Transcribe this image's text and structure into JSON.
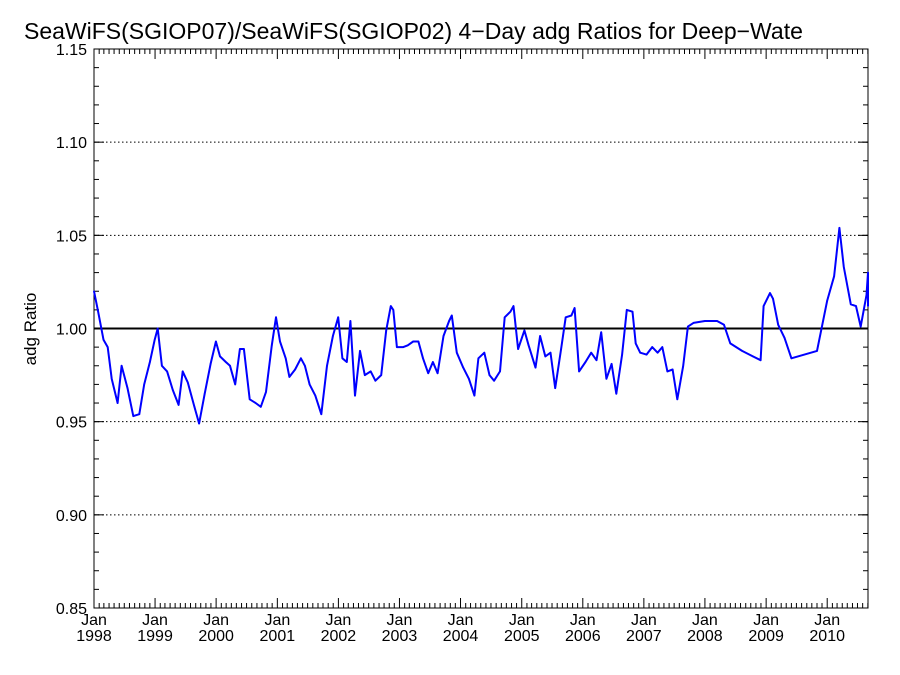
{
  "chart_data": {
    "type": "line",
    "title": "SeaWiFS(SGIOP07)/SeaWiFS(SGIOP02) 4−Day adg Ratios for Deep−Wate",
    "xlabel": "",
    "ylabel": "adg Ratio",
    "ylim": [
      0.85,
      1.15
    ],
    "xlim": [
      "1998-01-01",
      "2010-07-01"
    ],
    "yticks": [
      "0.85",
      "0.90",
      "0.95",
      "1.00",
      "1.05",
      "1.10",
      "1.15"
    ],
    "xticks": [
      {
        "date": "1998-01-01",
        "month": "Jan",
        "year": "1998"
      },
      {
        "date": "1999-01-01",
        "month": "Jan",
        "year": "1999"
      },
      {
        "date": "2000-01-01",
        "month": "Jan",
        "year": "2000"
      },
      {
        "date": "2001-01-01",
        "month": "Jan",
        "year": "2001"
      },
      {
        "date": "2002-01-01",
        "month": "Jan",
        "year": "2002"
      },
      {
        "date": "2003-01-01",
        "month": "Jan",
        "year": "2003"
      },
      {
        "date": "2004-01-01",
        "month": "Jan",
        "year": "2004"
      },
      {
        "date": "2005-01-01",
        "month": "Jan",
        "year": "2005"
      },
      {
        "date": "2006-01-01",
        "month": "Jan",
        "year": "2006"
      },
      {
        "date": "2007-01-01",
        "month": "Jan",
        "year": "2007"
      },
      {
        "date": "2008-01-01",
        "month": "Jan",
        "year": "2008"
      },
      {
        "date": "2009-01-01",
        "month": "Jan",
        "year": "2009"
      },
      {
        "date": "2010-01-01",
        "month": "Jan",
        "year": "2010"
      }
    ],
    "grid": "horizontal dotted",
    "reference_line": 1.0,
    "colors": {
      "series": "#0000ff",
      "reference": "#000000",
      "axes": "#000000"
    },
    "series": [
      {
        "points": [
          [
            "1998-01-01",
            1.02
          ],
          [
            "1998-01-24",
            1.01
          ],
          [
            "1998-02-27",
            0.994
          ],
          [
            "1998-03-24",
            0.99
          ],
          [
            "1998-04-17",
            0.973
          ],
          [
            "1998-05-22",
            0.96
          ],
          [
            "1998-06-15",
            0.98
          ],
          [
            "1998-07-20",
            0.968
          ],
          [
            "1998-08-24",
            0.953
          ],
          [
            "1998-09-29",
            0.954
          ],
          [
            "1998-10-28",
            0.97
          ],
          [
            "1998-12-01",
            0.982
          ],
          [
            "1998-12-30",
            0.994
          ],
          [
            "1999-01-17",
            1.0
          ],
          [
            "1999-02-11",
            0.98
          ],
          [
            "1999-03-14",
            0.977
          ],
          [
            "1999-04-17",
            0.967
          ],
          [
            "1999-05-22",
            0.959
          ],
          [
            "1999-06-15",
            0.977
          ],
          [
            "1999-07-16",
            0.971
          ],
          [
            "1999-08-24",
            0.958
          ],
          [
            "1999-09-21",
            0.949
          ],
          [
            "1999-10-25",
            0.965
          ],
          [
            "1999-11-29",
            0.981
          ],
          [
            "1999-12-31",
            0.993
          ],
          [
            "2000-01-24",
            0.985
          ],
          [
            "2000-02-28",
            0.982
          ],
          [
            "2000-03-24",
            0.98
          ],
          [
            "2000-04-24",
            0.97
          ],
          [
            "2000-05-22",
            0.989
          ],
          [
            "2000-06-15",
            0.989
          ],
          [
            "2000-07-20",
            0.962
          ],
          [
            "2000-08-24",
            0.96
          ],
          [
            "2000-09-24",
            0.958
          ],
          [
            "2000-10-25",
            0.966
          ],
          [
            "2000-11-29",
            0.991
          ],
          [
            "2000-12-24",
            1.006
          ],
          [
            "2001-01-17",
            0.993
          ],
          [
            "2001-02-20",
            0.984
          ],
          [
            "2001-03-14",
            0.974
          ],
          [
            "2001-04-17",
            0.978
          ],
          [
            "2001-05-22",
            0.984
          ],
          [
            "2001-06-15",
            0.98
          ],
          [
            "2001-07-13",
            0.97
          ],
          [
            "2001-08-16",
            0.964
          ],
          [
            "2001-09-21",
            0.954
          ],
          [
            "2001-10-25",
            0.98
          ],
          [
            "2001-11-29",
            0.996
          ],
          [
            "2001-12-31",
            1.006
          ],
          [
            "2002-01-25",
            0.984
          ],
          [
            "2002-02-20",
            0.982
          ],
          [
            "2002-03-14",
            1.004
          ],
          [
            "2002-04-10",
            0.964
          ],
          [
            "2002-05-10",
            0.988
          ],
          [
            "2002-06-08",
            0.975
          ],
          [
            "2002-07-13",
            0.977
          ],
          [
            "2002-08-10",
            0.972
          ],
          [
            "2002-09-14",
            0.975
          ],
          [
            "2002-10-14",
            0.999
          ],
          [
            "2002-11-10",
            1.012
          ],
          [
            "2002-11-25",
            1.01
          ],
          [
            "2002-12-17",
            0.99
          ],
          [
            "2003-01-24",
            0.99
          ],
          [
            "2003-02-20",
            0.991
          ],
          [
            "2003-03-24",
            0.993
          ],
          [
            "2003-04-24",
            0.993
          ],
          [
            "2003-05-22",
            0.984
          ],
          [
            "2003-06-22",
            0.976
          ],
          [
            "2003-07-20",
            0.982
          ],
          [
            "2003-08-17",
            0.976
          ],
          [
            "2003-09-21",
            0.996
          ],
          [
            "2003-10-25",
            1.004
          ],
          [
            "2003-11-10",
            1.007
          ],
          [
            "2003-12-10",
            0.987
          ],
          [
            "2004-01-17",
            0.979
          ],
          [
            "2004-02-20",
            0.973
          ],
          [
            "2004-03-24",
            0.964
          ],
          [
            "2004-04-17",
            0.984
          ],
          [
            "2004-05-22",
            0.987
          ],
          [
            "2004-06-22",
            0.975
          ],
          [
            "2004-07-20",
            0.972
          ],
          [
            "2004-08-24",
            0.977
          ],
          [
            "2004-09-21",
            1.006
          ],
          [
            "2004-10-25",
            1.009
          ],
          [
            "2004-11-13",
            1.012
          ],
          [
            "2004-12-10",
            0.989
          ],
          [
            "2005-01-17",
            0.999
          ],
          [
            "2005-02-11",
            0.991
          ],
          [
            "2005-03-24",
            0.979
          ],
          [
            "2005-04-21",
            0.996
          ],
          [
            "2005-05-22",
            0.985
          ],
          [
            "2005-06-22",
            0.987
          ],
          [
            "2005-07-20",
            0.968
          ],
          [
            "2005-08-24",
            0.989
          ],
          [
            "2005-09-21",
            1.006
          ],
          [
            "2005-10-25",
            1.007
          ],
          [
            "2005-11-13",
            1.011
          ],
          [
            "2005-12-10",
            0.977
          ],
          [
            "2006-01-17",
            0.982
          ],
          [
            "2006-02-20",
            0.987
          ],
          [
            "2006-03-24",
            0.983
          ],
          [
            "2006-04-21",
            0.998
          ],
          [
            "2006-05-22",
            0.973
          ],
          [
            "2006-06-22",
            0.981
          ],
          [
            "2006-07-20",
            0.965
          ],
          [
            "2006-08-24",
            0.986
          ],
          [
            "2006-09-21",
            1.01
          ],
          [
            "2006-10-25",
            1.009
          ],
          [
            "2006-11-13",
            0.992
          ],
          [
            "2006-12-10",
            0.987
          ],
          [
            "2007-01-17",
            0.986
          ],
          [
            "2007-02-20",
            0.99
          ],
          [
            "2007-03-24",
            0.987
          ],
          [
            "2007-04-21",
            0.99
          ],
          [
            "2007-05-22",
            0.977
          ],
          [
            "2007-06-22",
            0.978
          ],
          [
            "2007-07-20",
            0.962
          ],
          [
            "2007-08-24",
            0.98
          ],
          [
            "2007-09-21",
            1.001
          ],
          [
            "2007-10-25",
            1.003
          ],
          [
            "2008-01-01",
            1.004
          ],
          [
            "2008-03-14",
            1.004
          ],
          [
            "2008-04-24",
            1.002
          ],
          [
            "2008-06-01",
            0.992
          ],
          [
            "2008-08-10",
            0.988
          ],
          [
            "2008-10-14",
            0.985
          ],
          [
            "2008-11-29",
            0.983
          ],
          [
            "2008-12-17",
            1.012
          ],
          [
            "2009-01-24",
            1.019
          ],
          [
            "2009-02-11",
            1.016
          ],
          [
            "2009-03-14",
            1.002
          ],
          [
            "2009-04-21",
            0.995
          ],
          [
            "2009-06-01",
            0.984
          ],
          [
            "2009-11-01",
            0.988
          ],
          [
            "2010-01-01",
            1.015
          ],
          [
            "2010-02-11",
            1.028
          ],
          [
            "2010-03-15",
            1.054
          ],
          [
            "2010-04-10",
            1.033
          ],
          [
            "2010-05-22",
            1.013
          ],
          [
            "2010-06-22",
            1.012
          ],
          [
            "2010-07-20",
            1.001
          ],
          [
            "2010-08-24",
            1.018
          ],
          [
            "2010-09-21",
            1.03
          ],
          [
            "2010-10-25",
            1.028
          ],
          [
            "2010-11-20",
            1.012
          ]
        ]
      }
    ]
  }
}
